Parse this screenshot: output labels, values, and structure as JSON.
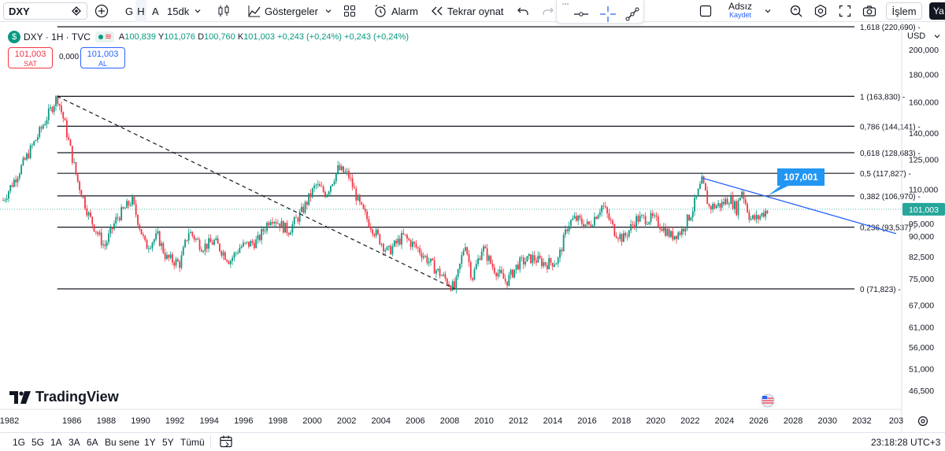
{
  "toolbar": {
    "symbol": "DXY",
    "intervals": [
      "G",
      "H",
      "A"
    ],
    "active_interval": "H",
    "timeframe": "15dk",
    "indicators_label": "Göstergeler",
    "alarm_label": "Alarm",
    "replay_label": "Tekrar oynat",
    "layout_name": "Adsız",
    "save_label": "Kaydet",
    "trade_label": "İşlem",
    "truncated_label": "Ya"
  },
  "legend": {
    "symbol_line": "DXY · 1H · TVC",
    "open_label": "A",
    "open": "100,839",
    "high_label": "Y",
    "high": "101,076",
    "low_label": "D",
    "low": "100,760",
    "close_label": "K",
    "close": "101,003",
    "change": "+0,243 (+0,24%)",
    "change2": "+0,243 (+0,24%)"
  },
  "trade_boxes": {
    "sell_price": "101,003",
    "sell_label": "SAT",
    "spread": "0,000",
    "buy_price": "101,003",
    "buy_label": "AL"
  },
  "price_axis": {
    "currency": "USD",
    "ticks": [
      "200,000",
      "180,000",
      "160,000",
      "140,000",
      "125,000",
      "110,000",
      "95,000",
      "90,000",
      "82,500",
      "75,000",
      "67,000",
      "61,000",
      "56,000",
      "51,000",
      "46,500"
    ],
    "last_price": "101,003"
  },
  "time_axis": [
    "1982",
    "1986",
    "1988",
    "1990",
    "1992",
    "1994",
    "1996",
    "1998",
    "2000",
    "2002",
    "2004",
    "2006",
    "2008",
    "2010",
    "2012",
    "2014",
    "2016",
    "2018",
    "2020",
    "2022",
    "2024",
    "2026",
    "2028",
    "2030",
    "2032",
    "203"
  ],
  "fib_levels": [
    {
      "label": "1,618 (220,690)",
      "ratio": 1.618,
      "price": 220.69
    },
    {
      "label": "1 (163,830)",
      "ratio": 1,
      "price": 163.83
    },
    {
      "label": "0,786 (144,141)",
      "ratio": 0.786,
      "price": 144.141
    },
    {
      "label": "0,618 (128,683)",
      "ratio": 0.618,
      "price": 128.683
    },
    {
      "label": "0,5 (117,827)",
      "ratio": 0.5,
      "price": 117.827
    },
    {
      "label": "0,382 (106,970)",
      "ratio": 0.382,
      "price": 106.97
    },
    {
      "label": "0,236 (93,537)",
      "ratio": 0.236,
      "price": 93.537
    },
    {
      "label": "0 (71,823)",
      "ratio": 0,
      "price": 71.823
    }
  ],
  "callout": "107,001",
  "brand": "TradingView",
  "bottom": {
    "ranges": [
      "1G",
      "5G",
      "1A",
      "3A",
      "6A",
      "Bu sene",
      "1Y",
      "5Y",
      "Tümü"
    ],
    "clock": "23:18:28 UTC+3"
  },
  "colors": {
    "up": "#089981",
    "down": "#f23645",
    "accent": "#2962ff",
    "callout": "#2196f3",
    "last_price": "#26a69a"
  },
  "chart_data": {
    "type": "line",
    "title": "DXY · 1H · TVC",
    "series": [
      {
        "name": "DXY",
        "x": [
          1982,
          1983,
          1984,
          1985.15,
          1985.6,
          1986.3,
          1987.0,
          1987.9,
          1988.6,
          1989.5,
          1990.3,
          1991.0,
          1991.5,
          1992.3,
          1992.8,
          1993.6,
          1994.3,
          1995.2,
          1995.8,
          1996.8,
          1997.6,
          1998.6,
          1999.4,
          2000.2,
          2000.8,
          2001.5,
          2002.1,
          2002.8,
          2003.6,
          2004.4,
          2005.3,
          2006.2,
          2007.2,
          2008.3,
          2008.9,
          2009.3,
          2009.9,
          2010.5,
          2011.3,
          2012.0,
          2012.8,
          2013.6,
          2014.3,
          2014.9,
          2015.3,
          2016.1,
          2016.9,
          2017.6,
          2018.1,
          2018.9,
          2019.8,
          2020.2,
          2020.9,
          2021.5,
          2022.1,
          2022.7,
          2023.1,
          2023.8,
          2024.3,
          2024.7,
          2025.0,
          2025.5,
          2025.9,
          2026.5
        ],
        "values": [
          105,
          120,
          138,
          163.8,
          145,
          115,
          98,
          86,
          97,
          105,
          86,
          90,
          82,
          80,
          92,
          86,
          88,
          81,
          86,
          88,
          98,
          92,
          100,
          112,
          108,
          120,
          117,
          102,
          92,
          84,
          90,
          85,
          78,
          71.8,
          88,
          75,
          86,
          79,
          74,
          80,
          82,
          80,
          81,
          95,
          97,
          94,
          103,
          92,
          89,
          97,
          97,
          95,
          90,
          92,
          100,
          114,
          102,
          103,
          106,
          101,
          110,
          97,
          97,
          101
        ]
      }
    ],
    "ylim": [
      46.5,
      220.69
    ],
    "y_scale": "log",
    "xlim": [
      1982,
      2034
    ],
    "last_price": 101.003,
    "fib_from": {
      "x": 1985.15,
      "price": 163.83
    },
    "fib_to": {
      "x": 2008.3,
      "price": 71.823
    },
    "trendline": {
      "x": [
        2022.7,
        2034
      ],
      "values": [
        115.5,
        91
      ]
    },
    "callout_price": 107.001,
    "grid": false
  }
}
